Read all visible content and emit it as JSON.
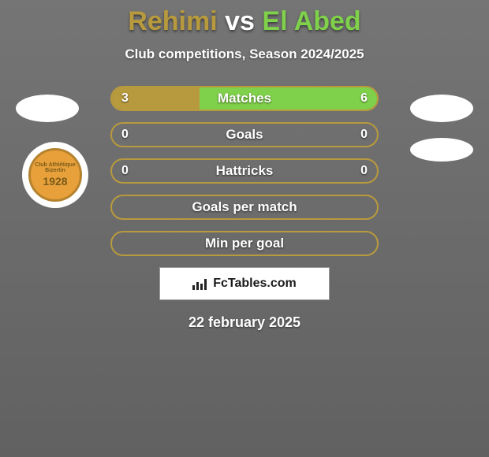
{
  "background_gradient": {
    "top": "#757575",
    "bottom": "#616161"
  },
  "title": {
    "player1": {
      "name": "Rehimi",
      "color": "#b89a3e"
    },
    "vs": {
      "text": "vs",
      "color": "#ffffff"
    },
    "player2": {
      "name": "El Abed",
      "color": "#7fd04a"
    }
  },
  "subtitle": {
    "text": "Club competitions, Season 2024/2025",
    "color": "#ffffff"
  },
  "club_logo": {
    "line1": "Club Athlétique Bizertin",
    "year": "1928",
    "bg_color": "#e8a03a",
    "border_color": "#b5832e"
  },
  "bars": {
    "border_color": "#b89a3e",
    "label_color": "#ffffff",
    "value_color": "#ffffff",
    "fill_left_color": "#b89a3e",
    "fill_right_color": "#7fd04a",
    "rows": [
      {
        "label": "Matches",
        "left": "3",
        "right": "6",
        "left_pct": 33,
        "right_pct": 67,
        "show_values": true
      },
      {
        "label": "Goals",
        "left": "0",
        "right": "0",
        "left_pct": 0,
        "right_pct": 0,
        "show_values": true
      },
      {
        "label": "Hattricks",
        "left": "0",
        "right": "0",
        "left_pct": 0,
        "right_pct": 0,
        "show_values": true
      },
      {
        "label": "Goals per match",
        "left": "",
        "right": "",
        "left_pct": 0,
        "right_pct": 0,
        "show_values": false
      },
      {
        "label": "Min per goal",
        "left": "",
        "right": "",
        "left_pct": 0,
        "right_pct": 0,
        "show_values": false
      }
    ]
  },
  "attribution": {
    "text": "FcTables.com",
    "text_color": "#1a1a1a"
  },
  "date": {
    "text": "22 february 2025",
    "color": "#ffffff"
  }
}
